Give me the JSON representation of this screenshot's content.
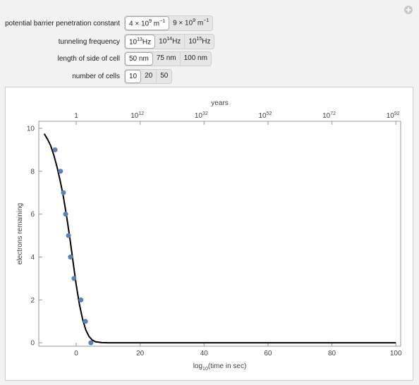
{
  "controls": [
    {
      "label": "potential barrier penetration constant",
      "selected": 0,
      "options": [
        [
          {
            "text": "4 × 10"
          },
          {
            "sup": "9"
          },
          {
            "text": " m"
          },
          {
            "sup": "−1"
          }
        ],
        [
          {
            "text": "9 × 10"
          },
          {
            "sup": "9"
          },
          {
            "text": " m"
          },
          {
            "sup": "−1"
          }
        ]
      ]
    },
    {
      "label": "tunneling frequency",
      "selected": 0,
      "options": [
        [
          {
            "text": "10"
          },
          {
            "sup": "13"
          },
          {
            "text": "Hz"
          }
        ],
        [
          {
            "text": "10"
          },
          {
            "sup": "14"
          },
          {
            "text": "Hz"
          }
        ],
        [
          {
            "text": "10"
          },
          {
            "sup": "15"
          },
          {
            "text": "Hz"
          }
        ]
      ]
    },
    {
      "label": "length of side of cell",
      "selected": 0,
      "options": [
        [
          {
            "text": "50 nm"
          }
        ],
        [
          {
            "text": "75 nm"
          }
        ],
        [
          {
            "text": "100 nm"
          }
        ]
      ]
    },
    {
      "label": "number of cells",
      "selected": 0,
      "options": [
        [
          {
            "text": "10"
          }
        ],
        [
          {
            "text": "20"
          }
        ],
        [
          {
            "text": "50"
          }
        ]
      ]
    }
  ],
  "chart_data": {
    "type": "scatter+line",
    "x_label": {
      "prefix": "log",
      "subscript": "10",
      "suffix": "(time in sec)"
    },
    "y_label": "electrons remaining",
    "top_axis_label": "years",
    "xlim": [
      -11.7,
      101.5
    ],
    "ylim": [
      -0.16,
      10.33
    ],
    "xticks": [
      0,
      20,
      40,
      60,
      80,
      100
    ],
    "yticks": [
      0,
      2,
      4,
      6,
      8,
      10
    ],
    "top_ticks": [
      {
        "value": 0,
        "label": "1"
      },
      {
        "value": 20,
        "base": "10",
        "exponent": "12"
      },
      {
        "value": 40,
        "base": "10",
        "exponent": "32"
      },
      {
        "value": 60,
        "base": "10",
        "exponent": "52"
      },
      {
        "value": 80,
        "base": "10",
        "exponent": "72"
      },
      {
        "value": 100,
        "base": "10",
        "exponent": "92"
      }
    ],
    "points": {
      "color": "#5e81b5",
      "x": [
        -6.6,
        -4.9,
        -4.0,
        -3.3,
        -2.4,
        -1.8,
        -0.7,
        1.5,
        2.9,
        4.6
      ],
      "values": [
        9,
        8,
        7,
        6,
        5,
        4,
        3,
        2,
        1,
        0
      ]
    },
    "curve": {
      "color": "#000000",
      "x": [
        -10,
        -9,
        -8,
        -7,
        -6,
        -5,
        -4,
        -3,
        -2,
        -1,
        0,
        1,
        2,
        3,
        4,
        5,
        6,
        8,
        10,
        100
      ],
      "values": [
        9.75,
        9.5,
        9.2,
        8.75,
        8.2,
        7.55,
        6.8,
        5.9,
        4.9,
        3.8,
        2.7,
        1.8,
        1.1,
        0.6,
        0.3,
        0.13,
        0.05,
        0.01,
        0,
        0
      ]
    }
  }
}
